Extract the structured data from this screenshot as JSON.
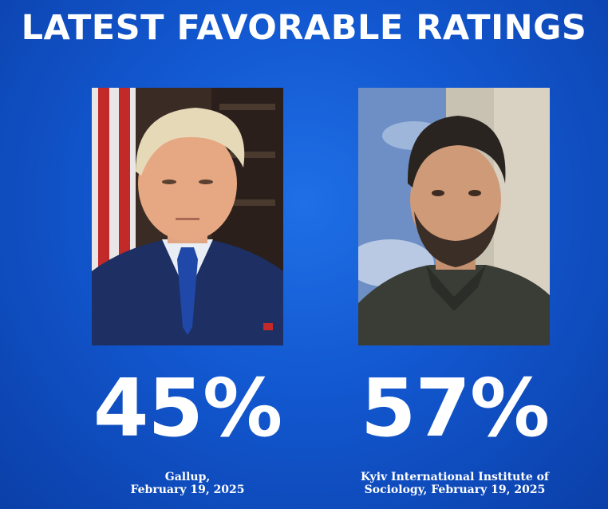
{
  "title": "LATEST FAVORABLE RATINGS",
  "left": {
    "percent": "45%",
    "source_line1": "Gallup,",
    "source_line2": "February 19, 2025",
    "photo": "portrait-man-white-hair-blue-suit-flag"
  },
  "right": {
    "percent": "57%",
    "source_line1": "Kyiv International Institute of",
    "source_line2": "Sociology, February 19, 2025",
    "photo": "portrait-man-beard-olive-jacket"
  },
  "colors": {
    "background": "#1257cf",
    "text": "#ffffff"
  }
}
